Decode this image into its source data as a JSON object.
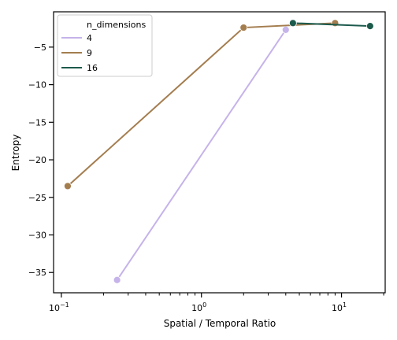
{
  "chart_data": {
    "type": "line",
    "xscale": "log",
    "xlabel": "Spatial / Temporal Ratio",
    "ylabel": "Entropy",
    "xlim": [
      0.088,
      20.5
    ],
    "ylim": [
      -37.7,
      -0.3
    ],
    "x_ticks": [
      {
        "value": 0.1,
        "label": "10",
        "exp": "−1"
      },
      {
        "value": 1,
        "label": "10",
        "exp": "0"
      },
      {
        "value": 10,
        "label": "10",
        "exp": "1"
      }
    ],
    "y_ticks": [
      {
        "value": -5,
        "label": "−5"
      },
      {
        "value": -10,
        "label": "−10"
      },
      {
        "value": -15,
        "label": "−15"
      },
      {
        "value": -20,
        "label": "−20"
      },
      {
        "value": -25,
        "label": "−25"
      },
      {
        "value": -30,
        "label": "−30"
      },
      {
        "value": -35,
        "label": "−35"
      }
    ],
    "legend": {
      "title": "n_dimensions",
      "placement": "top-left"
    },
    "series": [
      {
        "name": "4",
        "color": "#c5b3ea",
        "x": [
          0.25,
          4
        ],
        "y": [
          -36.0,
          -2.7
        ]
      },
      {
        "name": "9",
        "color": "#a47d4f",
        "x": [
          0.111,
          2.0,
          9.0
        ],
        "y": [
          -23.5,
          -2.4,
          -1.8
        ]
      },
      {
        "name": "16",
        "color": "#1c5a4c",
        "x": [
          4.5,
          16.0
        ],
        "y": [
          -1.8,
          -2.2
        ]
      }
    ]
  }
}
